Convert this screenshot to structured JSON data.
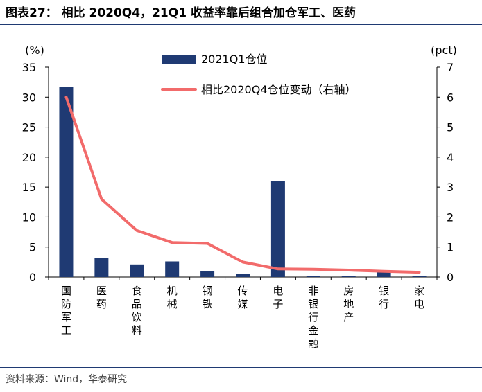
{
  "header": {
    "title": "图表27： 相比 2020Q4，21Q1 收益率靠后组合加仓军工、医药"
  },
  "footer": {
    "source": "资料来源：Wind，华泰研究"
  },
  "chart_data": {
    "type": "bar",
    "categories": [
      "国防军工",
      "医药",
      "食品饮料",
      "机械",
      "钢铁",
      "传媒",
      "电子",
      "非银行金融",
      "房地产",
      "银行",
      "家电"
    ],
    "series": [
      {
        "name": "2021Q1仓位",
        "type": "bar",
        "axis": "left",
        "color": "#1f3a73",
        "values": [
          31.7,
          3.2,
          2.1,
          2.6,
          1.0,
          0.5,
          16.0,
          0.2,
          0.15,
          0.8,
          0.2
        ]
      },
      {
        "name": "相比2020Q4仓位变动（右轴）",
        "type": "line",
        "axis": "right",
        "color": "#f26b6b",
        "values": [
          6.0,
          2.6,
          1.55,
          1.15,
          1.12,
          0.5,
          0.27,
          0.26,
          0.23,
          0.19,
          0.16
        ]
      }
    ],
    "y_left": {
      "unit": "(%)",
      "ylim": [
        0,
        35
      ],
      "ticks": [
        0,
        5,
        10,
        15,
        20,
        25,
        30,
        35
      ]
    },
    "y_right": {
      "unit": "(pct)",
      "ylim": [
        0,
        7
      ],
      "ticks": [
        0,
        1,
        2,
        3,
        4,
        5,
        6,
        7
      ]
    },
    "grid": false,
    "legend_position": "top-center"
  }
}
